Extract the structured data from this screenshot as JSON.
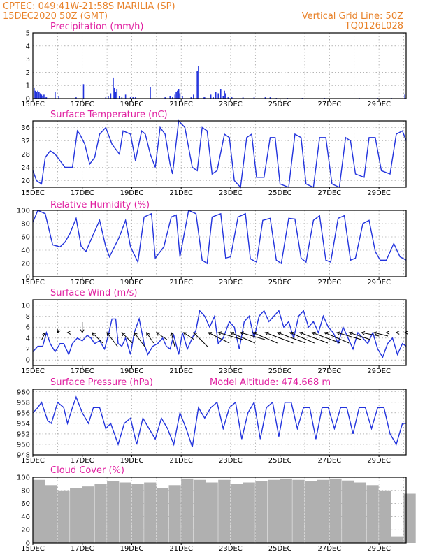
{
  "header": {
    "line1_left": "CPTEC:   049:41W-21:58S   MARILIA (SP)",
    "line2_left": "15DEC2020 50Z (GMT)",
    "line1_right": "Vertical Grid Line: 50Z",
    "line2_right": "TQ0126L028"
  },
  "colors": {
    "header": "#e8822a",
    "title": "#e01fa0",
    "line": "#2233dd",
    "bar": "#2233dd",
    "cloud": "#b0b0b0"
  },
  "x_axis": {
    "labels": [
      "15DEC",
      "17DEC",
      "19DEC",
      "21DEC",
      "23DEC",
      "25DEC",
      "27DEC",
      "29DEC"
    ],
    "label_days": [
      0,
      2,
      4,
      6,
      8,
      10,
      12,
      14
    ],
    "range_days": [
      0,
      15.1
    ]
  },
  "chart_data": [
    {
      "type": "bar",
      "title": "Precipitation (mm/h)",
      "ylim": [
        0,
        5
      ],
      "yticks": [
        0,
        1,
        2,
        3,
        4,
        5
      ],
      "grid": true,
      "x": [
        0.05,
        0.1,
        0.15,
        0.2,
        0.25,
        0.3,
        0.35,
        0.4,
        0.45,
        0.5,
        0.55,
        0.9,
        1.05,
        1.75,
        2.05,
        2.95,
        3.05,
        3.15,
        3.25,
        3.3,
        3.35,
        3.4,
        3.5,
        3.6,
        3.75,
        3.95,
        4.05,
        4.15,
        4.75,
        5.35,
        5.55,
        5.65,
        5.75,
        5.8,
        5.85,
        5.9,
        5.95,
        6.05,
        6.4,
        6.5,
        6.65,
        6.7,
        6.9,
        6.95,
        7.2,
        7.3,
        7.4,
        7.5,
        7.6,
        7.7,
        7.75,
        7.8,
        7.9,
        8.05,
        8.5,
        8.95,
        9.4,
        9.6,
        9.85,
        10.3,
        10.9,
        11.8,
        13.2,
        13.95,
        14.5,
        15.05
      ],
      "values": [
        0.8,
        0.6,
        0.5,
        0.6,
        0.5,
        0.4,
        0.3,
        0.2,
        0.3,
        0.1,
        0.1,
        0.5,
        0.2,
        0.1,
        1.1,
        0.1,
        0.2,
        0.4,
        1.6,
        0.8,
        0.5,
        0.7,
        0.2,
        0.1,
        0.3,
        0.1,
        0.1,
        0.1,
        0.9,
        0.1,
        0.2,
        0.1,
        0.3,
        0.5,
        0.6,
        0.7,
        0.4,
        0.2,
        0.1,
        0.3,
        2.1,
        2.5,
        0.1,
        0.1,
        0.3,
        0.1,
        0.5,
        0.4,
        0.7,
        0.2,
        0.6,
        0.4,
        0.1,
        0.1,
        0.1,
        0.1,
        0.1,
        0.1,
        0.05,
        0.05,
        0.05,
        0.05,
        0.05,
        0.05,
        0.05,
        0.3
      ]
    },
    {
      "type": "line",
      "title": "Surface Temperature (nC)",
      "ylim": [
        18,
        38
      ],
      "yticks": [
        20,
        24,
        28,
        32,
        36
      ],
      "grid": true,
      "x": [
        0,
        0.15,
        0.35,
        0.5,
        0.7,
        0.9,
        1.1,
        1.3,
        1.6,
        1.8,
        1.9,
        2.1,
        2.3,
        2.5,
        2.7,
        2.95,
        3.2,
        3.5,
        3.65,
        3.95,
        4.15,
        4.4,
        4.55,
        4.75,
        4.95,
        5.15,
        5.35,
        5.55,
        5.65,
        5.9,
        6.15,
        6.45,
        6.65,
        6.85,
        7.05,
        7.25,
        7.45,
        7.75,
        7.95,
        8.15,
        8.4,
        8.65,
        8.85,
        9.05,
        9.35,
        9.6,
        9.8,
        10,
        10.35,
        10.6,
        10.85,
        11.05,
        11.35,
        11.6,
        11.85,
        12.1,
        12.4,
        12.65,
        12.85,
        13.05,
        13.4,
        13.6,
        13.85,
        14.1,
        14.45,
        14.7,
        14.95,
        15.1
      ],
      "values": [
        23,
        20,
        19,
        27,
        29,
        28,
        26,
        24,
        24,
        35,
        34,
        31,
        25,
        27,
        34,
        36,
        31,
        28,
        35,
        34,
        26,
        35,
        34,
        28,
        24,
        36,
        34,
        25,
        22,
        38,
        36,
        24,
        23,
        36,
        35,
        22,
        23,
        34,
        33,
        20,
        18,
        33,
        34,
        21,
        21,
        33,
        33,
        19,
        18,
        34,
        33,
        19,
        18,
        33,
        33,
        19,
        18,
        33,
        32,
        22,
        21,
        33,
        33,
        23,
        22,
        34,
        35,
        32
      ]
    },
    {
      "type": "line",
      "title": "Relative Humidity (%)",
      "ylim": [
        0,
        100
      ],
      "yticks": [
        0,
        20,
        40,
        60,
        80,
        100
      ],
      "grid": true,
      "x": [
        0,
        0.2,
        0.5,
        0.8,
        1.1,
        1.3,
        1.5,
        1.75,
        1.95,
        2.15,
        2.4,
        2.7,
        2.95,
        3.1,
        3.5,
        3.75,
        3.95,
        4.25,
        4.5,
        4.8,
        4.95,
        5.3,
        5.6,
        5.8,
        5.95,
        6.3,
        6.6,
        6.85,
        7.05,
        7.25,
        7.6,
        7.8,
        8,
        8.3,
        8.6,
        8.8,
        9.05,
        9.3,
        9.6,
        9.85,
        10.05,
        10.35,
        10.6,
        10.85,
        11.05,
        11.35,
        11.6,
        11.85,
        12.05,
        12.35,
        12.6,
        12.85,
        13.05,
        13.35,
        13.6,
        13.85,
        14.05,
        14.3,
        14.6,
        14.85,
        15.1
      ],
      "values": [
        82,
        100,
        95,
        48,
        45,
        52,
        65,
        88,
        46,
        38,
        60,
        85,
        45,
        30,
        60,
        85,
        45,
        22,
        90,
        95,
        28,
        45,
        90,
        93,
        30,
        100,
        95,
        25,
        20,
        90,
        95,
        28,
        30,
        90,
        95,
        27,
        22,
        85,
        88,
        25,
        20,
        88,
        87,
        28,
        22,
        85,
        92,
        25,
        22,
        88,
        92,
        25,
        28,
        80,
        85,
        38,
        25,
        25,
        50,
        30,
        25
      ]
    },
    {
      "type": "line",
      "title": "Surface Wind (m/s)",
      "ylim": [
        -1,
        11
      ],
      "yticks": [
        0,
        2,
        4,
        6,
        8,
        10
      ],
      "grid": true,
      "x": [
        0,
        0.2,
        0.4,
        0.55,
        0.7,
        0.9,
        1.1,
        1.25,
        1.45,
        1.6,
        1.8,
        2.0,
        2.2,
        2.35,
        2.5,
        2.7,
        2.9,
        3.05,
        3.2,
        3.35,
        3.45,
        3.6,
        3.75,
        3.95,
        4.1,
        4.3,
        4.5,
        4.65,
        4.85,
        5.05,
        5.25,
        5.4,
        5.55,
        5.7,
        5.9,
        6.05,
        6.25,
        6.45,
        6.6,
        6.75,
        6.95,
        7.15,
        7.35,
        7.5,
        7.7,
        7.95,
        8.15,
        8.35,
        8.55,
        8.75,
        8.95,
        9.15,
        9.35,
        9.55,
        9.75,
        9.95,
        10.15,
        10.35,
        10.55,
        10.75,
        10.95,
        11.15,
        11.35,
        11.55,
        11.75,
        11.95,
        12.15,
        12.35,
        12.55,
        12.75,
        12.95,
        13.15,
        13.35,
        13.55,
        13.75,
        13.95,
        14.15,
        14.35,
        14.55,
        14.75,
        14.95,
        15.1
      ],
      "values": [
        1.5,
        2.5,
        2.5,
        5,
        3,
        1.5,
        3,
        3,
        1,
        3,
        4,
        3.5,
        4.5,
        4,
        3,
        3.5,
        2,
        4.5,
        7.5,
        7.5,
        3,
        2.5,
        4,
        1,
        5,
        7.5,
        3,
        1,
        2.5,
        3,
        4,
        2.5,
        2,
        4.5,
        1,
        5,
        2,
        4,
        5.5,
        9,
        8,
        6,
        8,
        3,
        4,
        7,
        6,
        2,
        7,
        8,
        4,
        8,
        9,
        7,
        8,
        9,
        6,
        7,
        4,
        8,
        9,
        6,
        7,
        5,
        8,
        6,
        5,
        3,
        6,
        4,
        2,
        5,
        4,
        3,
        5,
        2,
        0.5,
        3,
        4,
        1,
        3,
        2.5
      ],
      "arrow_x": [
        0.5,
        1.0,
        1.4,
        2.0,
        2.4,
        3.0,
        3.6,
        4.1,
        4.6,
        5.0,
        5.6,
        6.1,
        6.5,
        7.1,
        7.5,
        8.0,
        8.4,
        8.9,
        9.4,
        9.9,
        10.4,
        10.8,
        11.3,
        11.8,
        12.3,
        12.8,
        13.3,
        13.8,
        14.3,
        14.7,
        15.05
      ],
      "arrow_u": [
        -1,
        0.5,
        0,
        0,
        3,
        3,
        3,
        3,
        2,
        3,
        1,
        3,
        4,
        6,
        7,
        7,
        7,
        7,
        8,
        8,
        7,
        8,
        8,
        7,
        7,
        6,
        5,
        4,
        0,
        0,
        0
      ],
      "arrow_v": [
        -2,
        1,
        0,
        3,
        -3,
        -4,
        -3,
        -4,
        -3,
        -2,
        -4,
        -2,
        -4,
        -3,
        -2,
        -3,
        -2,
        -3,
        -3,
        -3,
        -3,
        -3,
        -3,
        -3,
        -2,
        -2,
        -1,
        -1,
        0,
        0,
        0
      ]
    },
    {
      "type": "line",
      "title": "Surface Pressure (hPa)",
      "subtitle": "Model Altitude: 474.668 m",
      "ylim": [
        948,
        960.5
      ],
      "yticks": [
        948,
        950,
        952,
        954,
        956,
        958,
        960
      ],
      "grid": true,
      "x": [
        0,
        0.2,
        0.35,
        0.6,
        0.75,
        1.0,
        1.25,
        1.4,
        1.6,
        1.75,
        2.0,
        2.25,
        2.45,
        2.7,
        2.95,
        3.15,
        3.45,
        3.7,
        3.95,
        4.2,
        4.45,
        4.7,
        4.95,
        5.2,
        5.45,
        5.7,
        5.95,
        6.2,
        6.45,
        6.7,
        6.95,
        7.2,
        7.45,
        7.7,
        7.95,
        8.2,
        8.45,
        8.7,
        8.95,
        9.2,
        9.45,
        9.7,
        9.95,
        10.2,
        10.45,
        10.7,
        10.95,
        11.2,
        11.45,
        11.7,
        11.95,
        12.2,
        12.45,
        12.7,
        12.95,
        13.2,
        13.45,
        13.7,
        13.95,
        14.2,
        14.45,
        14.7,
        14.95,
        15.1
      ],
      "values": [
        956,
        957,
        958,
        954.5,
        954,
        958,
        957,
        954,
        957,
        959,
        956,
        954,
        957,
        957,
        953,
        954,
        950,
        954,
        955,
        950,
        955,
        953,
        951,
        955,
        953,
        950,
        956,
        953,
        949.5,
        957,
        955,
        957,
        958,
        953,
        957,
        958,
        951,
        956,
        958,
        951,
        957,
        958,
        951.5,
        958,
        958,
        953,
        957,
        957,
        951,
        957,
        957,
        953,
        957,
        957,
        952,
        957,
        957,
        953,
        957,
        957,
        952,
        950,
        954,
        954
      ]
    },
    {
      "type": "bar",
      "title": "Cloud Cover (%)",
      "ylim": [
        0,
        100
      ],
      "yticks": [
        0,
        20,
        40,
        60,
        80,
        100
      ],
      "grid": true,
      "x": [
        0,
        0.5,
        1.0,
        1.5,
        2.0,
        2.5,
        3.0,
        3.5,
        4.0,
        4.5,
        5.0,
        5.5,
        6.0,
        6.5,
        7.0,
        7.5,
        8.0,
        8.5,
        9.0,
        9.5,
        10.0,
        10.5,
        11.0,
        11.5,
        12.0,
        12.5,
        13.0,
        13.5,
        14.0,
        14.5,
        15.0
      ],
      "values": [
        96,
        88,
        80,
        84,
        86,
        90,
        94,
        92,
        90,
        92,
        84,
        88,
        98,
        96,
        92,
        96,
        90,
        92,
        94,
        96,
        98,
        96,
        94,
        96,
        98,
        95,
        92,
        88,
        80,
        10,
        75
      ]
    }
  ]
}
